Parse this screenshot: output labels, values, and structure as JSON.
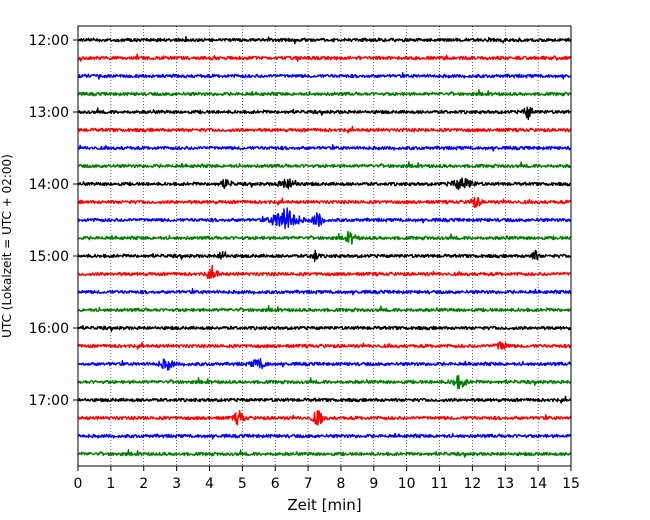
{
  "chart_data": {
    "type": "line",
    "title": "",
    "xlabel": "Zeit  [min]",
    "ylabel": "UTC (Lokalzeit = UTC + 02:00)",
    "xlim": [
      0,
      15
    ],
    "x_ticks": [
      "0",
      "1",
      "2",
      "3",
      "4",
      "5",
      "6",
      "7",
      "8",
      "9",
      "10",
      "11",
      "12",
      "13",
      "14",
      "15"
    ],
    "y_tick_labels": [
      "12:00",
      "13:00",
      "14:00",
      "15:00",
      "16:00",
      "17:00"
    ],
    "trace_interval_min": 15,
    "trace_start": "12:00",
    "trace_count": 24,
    "trace_colors": [
      "#000000",
      "#ff0000",
      "#0000ff",
      "#008000"
    ],
    "grid": "vertical dotted",
    "events": [
      {
        "trace": 8,
        "t": 6.4,
        "amp": 1.5,
        "width": 0.25
      },
      {
        "trace": 10,
        "t": 6.3,
        "amp": 3.8,
        "width": 0.35
      },
      {
        "trace": 10,
        "t": 7.3,
        "amp": 2.2,
        "width": 0.15
      },
      {
        "trace": 11,
        "t": 8.3,
        "amp": 1.5,
        "width": 0.15
      },
      {
        "trace": 12,
        "t": 4.4,
        "amp": 1.8,
        "width": 0.1
      },
      {
        "trace": 12,
        "t": 7.2,
        "amp": 1.6,
        "width": 0.1
      },
      {
        "trace": 12,
        "t": 13.9,
        "amp": 1.5,
        "width": 0.1
      },
      {
        "trace": 13,
        "t": 4.1,
        "amp": 1.7,
        "width": 0.15
      },
      {
        "trace": 17,
        "t": 12.9,
        "amp": 1.4,
        "width": 0.15
      },
      {
        "trace": 18,
        "t": 2.7,
        "amp": 1.5,
        "width": 0.2
      },
      {
        "trace": 18,
        "t": 5.5,
        "amp": 1.5,
        "width": 0.2
      },
      {
        "trace": 19,
        "t": 11.6,
        "amp": 1.8,
        "width": 0.2
      },
      {
        "trace": 21,
        "t": 4.9,
        "amp": 2.0,
        "width": 0.15
      },
      {
        "trace": 21,
        "t": 7.3,
        "amp": 2.2,
        "width": 0.15
      },
      {
        "trace": 4,
        "t": 13.7,
        "amp": 2.0,
        "width": 0.12
      },
      {
        "trace": 8,
        "t": 4.5,
        "amp": 1.4,
        "width": 0.15
      },
      {
        "trace": 8,
        "t": 11.7,
        "amp": 1.6,
        "width": 0.3
      },
      {
        "trace": 9,
        "t": 12.1,
        "amp": 1.5,
        "width": 0.15
      }
    ]
  }
}
